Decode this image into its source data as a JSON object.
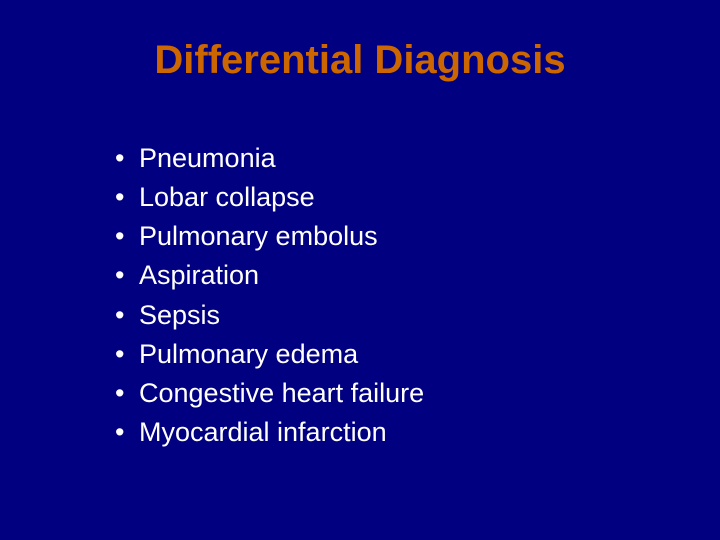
{
  "slide": {
    "title": "Differential Diagnosis",
    "title_color": "#cc6600",
    "title_fontsize": 40,
    "background_color": "#000080",
    "text_color": "#ffffff",
    "body_fontsize": 27,
    "bullets": [
      "Pneumonia",
      "Lobar collapse",
      "Pulmonary embolus",
      "Aspiration",
      "Sepsis",
      "Pulmonary edema",
      "Congestive heart failure",
      "Myocardial infarction"
    ]
  }
}
